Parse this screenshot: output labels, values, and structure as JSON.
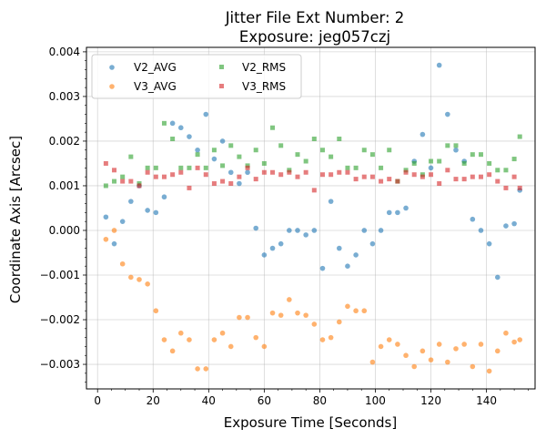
{
  "chart_data": {
    "type": "scatter",
    "title": [
      "Jitter File Ext Number: 2",
      "Exposure: jeg057czj"
    ],
    "xlabel": "Exposure Time [Seconds]",
    "ylabel": "Coordinate Axis [Arcsec]",
    "xlim": [
      -4,
      157.5
    ],
    "ylim": [
      -0.00355,
      0.0041
    ],
    "xticks": [
      0,
      20,
      40,
      60,
      80,
      100,
      120,
      140
    ],
    "xtick_labels": [
      "0",
      "20",
      "40",
      "60",
      "80",
      "100",
      "120",
      "140"
    ],
    "yticks": [
      -0.003,
      -0.002,
      -0.001,
      0.0,
      0.001,
      0.002,
      0.003,
      0.004
    ],
    "ytick_labels": [
      "−0.003",
      "−0.002",
      "−0.001",
      "0.000",
      "0.001",
      "0.002",
      "0.003",
      "0.004"
    ],
    "grid": true,
    "legend_position": "top-left",
    "series": [
      {
        "name": "V2_AVG",
        "color": "#1f77b4",
        "marker": "circle",
        "x": [
          3,
          6,
          9,
          12,
          15,
          18,
          21,
          24,
          27,
          30,
          33,
          36,
          39,
          42,
          45,
          48,
          51,
          54,
          57,
          60,
          63,
          66,
          69,
          72,
          75,
          78,
          81,
          84,
          87,
          90,
          93,
          96,
          99,
          102,
          105,
          108,
          111,
          114,
          117,
          120,
          123,
          126,
          129,
          132,
          135,
          138,
          141,
          144,
          147,
          150,
          152
        ],
        "y": [
          0.0003,
          -0.0003,
          0.0002,
          0.00065,
          0.001,
          0.00045,
          0.0004,
          0.00075,
          0.0024,
          0.0023,
          0.0021,
          0.0018,
          0.0026,
          0.0016,
          0.002,
          0.0013,
          0.00105,
          0.0013,
          5e-05,
          -0.00055,
          -0.0004,
          -0.0003,
          0.0,
          0.0,
          -0.0001,
          0.0,
          -0.00085,
          0.00065,
          -0.0004,
          -0.0008,
          -0.00055,
          0.0,
          -0.0003,
          0.0,
          0.0004,
          0.0004,
          0.0005,
          0.00155,
          0.00215,
          0.0014,
          0.0037,
          0.0026,
          0.0018,
          0.00155,
          0.00025,
          0.0,
          -0.0003,
          -0.00105,
          0.0001,
          0.00015,
          0.0009
        ]
      },
      {
        "name": "V3_AVG",
        "color": "#ff7f0e",
        "marker": "circle",
        "x": [
          3,
          6,
          9,
          12,
          15,
          18,
          21,
          24,
          27,
          30,
          33,
          36,
          39,
          42,
          45,
          48,
          51,
          54,
          57,
          60,
          63,
          66,
          69,
          72,
          75,
          78,
          81,
          84,
          87,
          90,
          93,
          96,
          99,
          102,
          105,
          108,
          111,
          114,
          117,
          120,
          123,
          126,
          129,
          132,
          135,
          138,
          141,
          144,
          147,
          150,
          152
        ],
        "y": [
          -0.0002,
          0.0,
          -0.00075,
          -0.00105,
          -0.0011,
          -0.0012,
          -0.0018,
          -0.00245,
          -0.0027,
          -0.0023,
          -0.00245,
          -0.0031,
          -0.0031,
          -0.00245,
          -0.0023,
          -0.0026,
          -0.00195,
          -0.00195,
          -0.0024,
          -0.0026,
          -0.00185,
          -0.0019,
          -0.00155,
          -0.00185,
          -0.0019,
          -0.0021,
          -0.00245,
          -0.0024,
          -0.00205,
          -0.0017,
          -0.0018,
          -0.0018,
          -0.00295,
          -0.0026,
          -0.00245,
          -0.00255,
          -0.0028,
          -0.00305,
          -0.0027,
          -0.0029,
          -0.00255,
          -0.00295,
          -0.00265,
          -0.00255,
          -0.00305,
          -0.00255,
          -0.00315,
          -0.0027,
          -0.0023,
          -0.0025,
          -0.00245
        ]
      },
      {
        "name": "V2_RMS",
        "color": "#2ca02c",
        "marker": "square",
        "x": [
          3,
          6,
          9,
          12,
          15,
          18,
          21,
          24,
          27,
          30,
          33,
          36,
          39,
          42,
          45,
          48,
          51,
          54,
          57,
          60,
          63,
          66,
          69,
          72,
          75,
          78,
          81,
          84,
          87,
          90,
          93,
          96,
          99,
          102,
          105,
          108,
          111,
          114,
          117,
          120,
          123,
          126,
          129,
          132,
          135,
          138,
          141,
          144,
          147,
          150,
          152
        ],
        "y": [
          0.001,
          0.0011,
          0.0012,
          0.00165,
          0.00105,
          0.0014,
          0.0014,
          0.0024,
          0.00205,
          0.0014,
          0.0014,
          0.0017,
          0.0014,
          0.0018,
          0.00145,
          0.0019,
          0.00165,
          0.00145,
          0.0018,
          0.0015,
          0.0023,
          0.0019,
          0.00135,
          0.0017,
          0.00155,
          0.00205,
          0.0018,
          0.00165,
          0.00205,
          0.0014,
          0.0014,
          0.0018,
          0.0017,
          0.0014,
          0.0018,
          0.0011,
          0.00135,
          0.0015,
          0.00125,
          0.00155,
          0.00155,
          0.0019,
          0.0019,
          0.0015,
          0.0017,
          0.0017,
          0.0015,
          0.00135,
          0.00135,
          0.0016,
          0.0021
        ]
      },
      {
        "name": "V3_RMS",
        "color": "#d62728",
        "marker": "square",
        "x": [
          3,
          6,
          9,
          12,
          15,
          18,
          21,
          24,
          27,
          30,
          33,
          36,
          39,
          42,
          45,
          48,
          51,
          54,
          57,
          60,
          63,
          66,
          69,
          72,
          75,
          78,
          81,
          84,
          87,
          90,
          93,
          96,
          99,
          102,
          105,
          108,
          111,
          114,
          117,
          120,
          123,
          126,
          129,
          132,
          135,
          138,
          141,
          144,
          147,
          150,
          152
        ],
        "y": [
          0.0015,
          0.00135,
          0.0011,
          0.0011,
          0.001,
          0.0013,
          0.0012,
          0.0012,
          0.00125,
          0.0013,
          0.00095,
          0.0014,
          0.00125,
          0.00105,
          0.0011,
          0.00105,
          0.0012,
          0.0014,
          0.00115,
          0.0013,
          0.0013,
          0.00125,
          0.0013,
          0.0012,
          0.0013,
          0.0009,
          0.00125,
          0.00125,
          0.0013,
          0.0013,
          0.00115,
          0.0012,
          0.0012,
          0.0011,
          0.00115,
          0.0011,
          0.0013,
          0.00125,
          0.0012,
          0.00125,
          0.00105,
          0.00135,
          0.00115,
          0.00115,
          0.0012,
          0.0012,
          0.00125,
          0.0011,
          0.00095,
          0.0012,
          0.00095
        ]
      }
    ]
  }
}
